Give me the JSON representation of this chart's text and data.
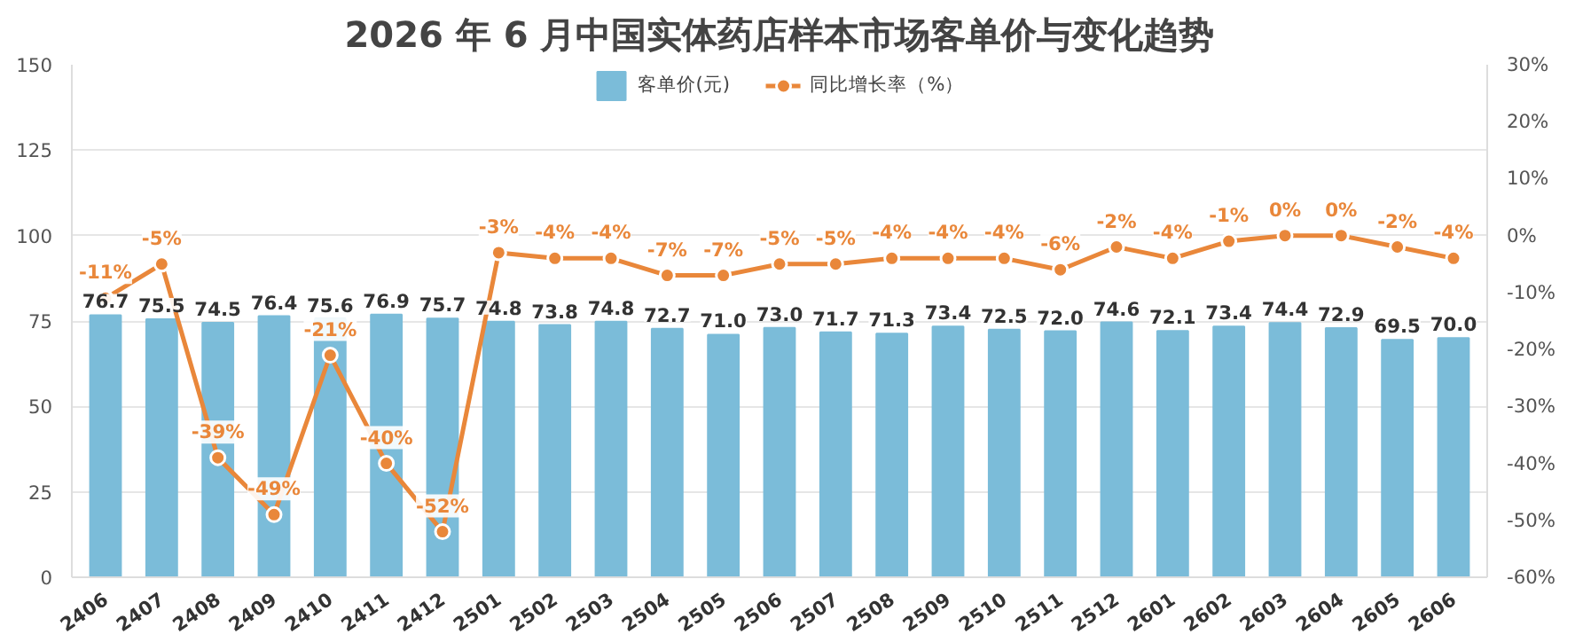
{
  "chart_data": {
    "type": "bar",
    "title": "2026 年 6 月中国实体药店样本市场客单价与变化趋势",
    "categories": [
      "2406",
      "2407",
      "2408",
      "2409",
      "2410",
      "2411",
      "2412",
      "2501",
      "2502",
      "2503",
      "2504",
      "2505",
      "2506",
      "2507",
      "2508",
      "2509",
      "2510",
      "2511",
      "2512",
      "2601",
      "2602",
      "2603",
      "2604",
      "2605",
      "2606"
    ],
    "series": [
      {
        "name": "客单价(元)",
        "color": "#7bbcd9",
        "values": [
          76.7,
          75.5,
          74.5,
          76.4,
          75.6,
          76.9,
          75.7,
          74.8,
          73.8,
          74.8,
          72.7,
          71.0,
          73.0,
          71.7,
          71.3,
          73.4,
          72.5,
          72.0,
          74.6,
          72.1,
          73.4,
          74.4,
          72.9,
          69.5,
          70.0
        ],
        "value_labels": [
          "76.7",
          "75.5",
          "74.5",
          "76.4",
          "75.6",
          "76.9",
          "75.7",
          "74.8",
          "73.8",
          "74.8",
          "72.7",
          "71.0",
          "73.0",
          "71.7",
          "71.3",
          "73.4",
          "72.5",
          "72.0",
          "74.6",
          "72.1",
          "73.4",
          "74.4",
          "72.9",
          "69.5",
          "70.0"
        ]
      },
      {
        "name": "同比增长率（%）",
        "type": "line",
        "axis": "y2",
        "color": "#e9873a",
        "marker": "circle",
        "values": [
          -11,
          -5,
          -39,
          -49,
          -21,
          -40,
          -52,
          -3,
          -4,
          -4,
          -7,
          -7,
          -5,
          -5,
          -4,
          -4,
          -4,
          -6,
          -2,
          -4,
          -1,
          0,
          0,
          -2,
          -4
        ],
        "value_labels": [
          "-11%",
          "-5%",
          "-39%",
          "-49%",
          "-21%",
          "-40%",
          "-52%",
          "-3%",
          "-4%",
          "-4%",
          "-7%",
          "-7%",
          "-5%",
          "-5%",
          "-4%",
          "-4%",
          "-4%",
          "-6%",
          "-2%",
          "-4%",
          "-1%",
          "0%",
          "0%",
          "-2%",
          "-4%"
        ]
      }
    ],
    "ylim": [
      0,
      150
    ],
    "yticks": [
      0,
      25,
      50,
      75,
      100,
      125,
      150
    ],
    "y2lim": [
      -60,
      30
    ],
    "y2ticks": [
      {
        "value": -60,
        "label": "-60%"
      },
      {
        "value": -50,
        "label": "-50%"
      },
      {
        "value": -40,
        "label": "-40%"
      },
      {
        "value": -30,
        "label": "-30%"
      },
      {
        "value": -20,
        "label": "-20%"
      },
      {
        "value": -10,
        "label": "-10%"
      },
      {
        "value": 0,
        "label": "0%"
      },
      {
        "value": 10,
        "label": "10%"
      },
      {
        "value": 20,
        "label": "20%"
      },
      {
        "value": 30,
        "label": "30%"
      }
    ],
    "grid": "y",
    "legend": "top"
  }
}
